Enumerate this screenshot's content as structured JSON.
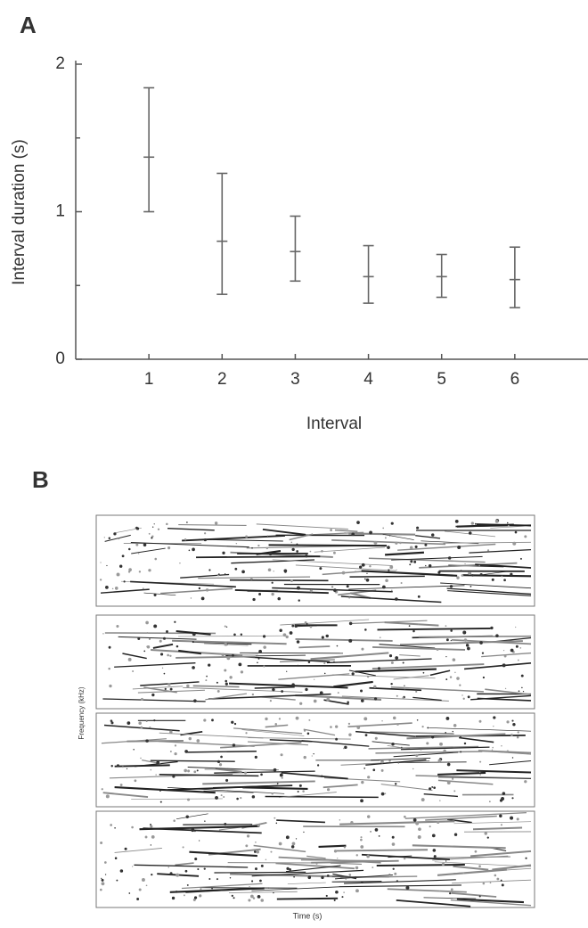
{
  "chart_data": [
    {
      "type": "errorbar",
      "panel": "A",
      "xlabel": "Interval",
      "ylabel": "Interval duration (s)",
      "x": [
        1,
        2,
        3,
        4,
        5,
        6
      ],
      "values": [
        1.37,
        0.8,
        0.73,
        0.56,
        0.56,
        0.54
      ],
      "lower": [
        1.0,
        0.44,
        0.53,
        0.38,
        0.42,
        0.35
      ],
      "upper": [
        1.84,
        1.26,
        0.97,
        0.77,
        0.71,
        0.76
      ],
      "color": "#666666",
      "xlim": [
        0,
        7
      ],
      "xticks": [
        1,
        2,
        3,
        4,
        5,
        6
      ],
      "ylim": [
        0,
        2
      ],
      "yticks": [
        0,
        1,
        2
      ],
      "yminorticks": [
        0.5,
        1.5
      ]
    },
    {
      "type": "spectrogram",
      "panel": "B",
      "ylabel": "Frequency (kHz)",
      "xlabel": "Time (s)"
    }
  ]
}
